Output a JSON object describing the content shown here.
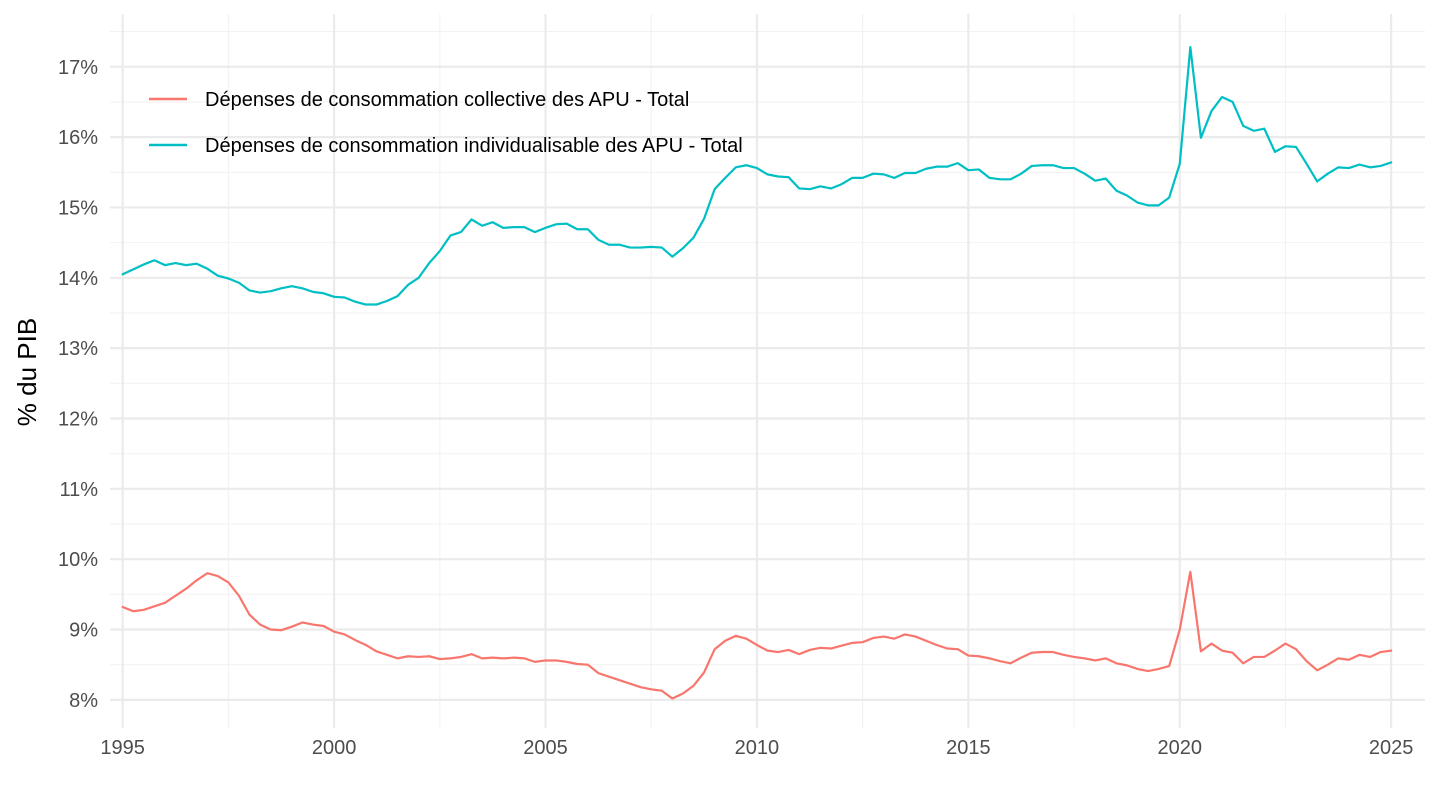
{
  "chart_data": {
    "type": "line",
    "title": "",
    "xlabel": "",
    "ylabel": "% du PIB",
    "xlim": [
      1994.7,
      2025.8
    ],
    "ylim": [
      7.6,
      17.75
    ],
    "x_ticks": [
      1995,
      2000,
      2005,
      2010,
      2015,
      2020,
      2025
    ],
    "x_tick_labels": [
      "1995",
      "2000",
      "2005",
      "2010",
      "2015",
      "2020",
      "2025"
    ],
    "y_ticks": [
      8,
      9,
      10,
      11,
      12,
      13,
      14,
      15,
      16,
      17
    ],
    "y_tick_labels": [
      "8%",
      "9%",
      "10%",
      "11%",
      "12%",
      "13%",
      "14%",
      "15%",
      "16%",
      "17%"
    ],
    "grid": true,
    "legend_position": "top-left",
    "series": [
      {
        "name": "Dépenses de consommation collective des APU - Total",
        "color": "#F8766D",
        "x": [
          1995,
          1995.25,
          1995.5,
          1995.75,
          1996,
          1996.25,
          1996.5,
          1996.75,
          1997,
          1997.25,
          1997.5,
          1997.75,
          1998,
          1998.25,
          1998.5,
          1998.75,
          1999,
          1999.25,
          1999.5,
          1999.75,
          2000,
          2000.25,
          2000.5,
          2000.75,
          2001,
          2001.25,
          2001.5,
          2001.75,
          2002,
          2002.25,
          2002.5,
          2002.75,
          2003,
          2003.25,
          2003.5,
          2003.75,
          2004,
          2004.25,
          2004.5,
          2004.75,
          2005,
          2005.25,
          2005.5,
          2005.75,
          2006,
          2006.25,
          2006.5,
          2006.75,
          2007,
          2007.25,
          2007.5,
          2007.75,
          2008,
          2008.25,
          2008.5,
          2008.75,
          2009,
          2009.25,
          2009.5,
          2009.75,
          2010,
          2010.25,
          2010.5,
          2010.75,
          2011,
          2011.25,
          2011.5,
          2011.75,
          2012,
          2012.25,
          2012.5,
          2012.75,
          2013,
          2013.25,
          2013.5,
          2013.75,
          2014,
          2014.25,
          2014.5,
          2014.75,
          2015,
          2015.25,
          2015.5,
          2015.75,
          2016,
          2016.25,
          2016.5,
          2016.75,
          2017,
          2017.25,
          2017.5,
          2017.75,
          2018,
          2018.25,
          2018.5,
          2018.75,
          2019,
          2019.25,
          2019.5,
          2019.75,
          2020,
          2020.25,
          2020.5,
          2020.75,
          2021,
          2021.25,
          2021.5,
          2021.75,
          2022,
          2022.25,
          2022.5,
          2022.75,
          2023,
          2023.25,
          2023.5,
          2023.75,
          2024,
          2024.25,
          2024.5,
          2024.75,
          2025
        ],
        "y": [
          9.32,
          9.26,
          9.28,
          9.33,
          9.38,
          9.48,
          9.58,
          9.7,
          9.8,
          9.76,
          9.67,
          9.48,
          9.21,
          9.07,
          9.0,
          8.99,
          9.04,
          9.1,
          9.07,
          9.05,
          8.97,
          8.93,
          8.85,
          8.78,
          8.69,
          8.64,
          8.59,
          8.62,
          8.61,
          8.62,
          8.58,
          8.59,
          8.61,
          8.65,
          8.59,
          8.6,
          8.59,
          8.6,
          8.59,
          8.54,
          8.56,
          8.56,
          8.54,
          8.51,
          8.5,
          8.38,
          8.33,
          8.28,
          8.23,
          8.18,
          8.15,
          8.13,
          8.02,
          8.09,
          8.2,
          8.39,
          8.72,
          8.84,
          8.91,
          8.87,
          8.78,
          8.7,
          8.68,
          8.71,
          8.65,
          8.71,
          8.74,
          8.73,
          8.77,
          8.81,
          8.82,
          8.88,
          8.9,
          8.87,
          8.93,
          8.9,
          8.84,
          8.78,
          8.73,
          8.72,
          8.63,
          8.62,
          8.59,
          8.55,
          8.52,
          8.6,
          8.67,
          8.68,
          8.68,
          8.64,
          8.61,
          8.59,
          8.56,
          8.59,
          8.52,
          8.49,
          8.44,
          8.41,
          8.44,
          8.48,
          9.0,
          9.82,
          8.69,
          8.8,
          8.7,
          8.67,
          8.52,
          8.61,
          8.61,
          8.7,
          8.8,
          8.72,
          8.55,
          8.42,
          8.5,
          8.59,
          8.57,
          8.64,
          8.61,
          8.68,
          8.7
        ]
      },
      {
        "name": "Dépenses de consommation individualisable des APU - Total",
        "color": "#00BFC4",
        "x": [
          1995,
          1995.25,
          1995.5,
          1995.75,
          1996,
          1996.25,
          1996.5,
          1996.75,
          1997,
          1997.25,
          1997.5,
          1997.75,
          1998,
          1998.25,
          1998.5,
          1998.75,
          1999,
          1999.25,
          1999.5,
          1999.75,
          2000,
          2000.25,
          2000.5,
          2000.75,
          2001,
          2001.25,
          2001.5,
          2001.75,
          2002,
          2002.25,
          2002.5,
          2002.75,
          2003,
          2003.25,
          2003.5,
          2003.75,
          2004,
          2004.25,
          2004.5,
          2004.75,
          2005,
          2005.25,
          2005.5,
          2005.75,
          2006,
          2006.25,
          2006.5,
          2006.75,
          2007,
          2007.25,
          2007.5,
          2007.75,
          2008,
          2008.25,
          2008.5,
          2008.75,
          2009,
          2009.25,
          2009.5,
          2009.75,
          2010,
          2010.25,
          2010.5,
          2010.75,
          2011,
          2011.25,
          2011.5,
          2011.75,
          2012,
          2012.25,
          2012.5,
          2012.75,
          2013,
          2013.25,
          2013.5,
          2013.75,
          2014,
          2014.25,
          2014.5,
          2014.75,
          2015,
          2015.25,
          2015.5,
          2015.75,
          2016,
          2016.25,
          2016.5,
          2016.75,
          2017,
          2017.25,
          2017.5,
          2017.75,
          2018,
          2018.25,
          2018.5,
          2018.75,
          2019,
          2019.25,
          2019.5,
          2019.75,
          2020,
          2020.25,
          2020.5,
          2020.75,
          2021,
          2021.25,
          2021.5,
          2021.75,
          2022,
          2022.25,
          2022.5,
          2022.75,
          2023,
          2023.25,
          2023.5,
          2023.75,
          2024,
          2024.25,
          2024.5,
          2024.75,
          2025
        ],
        "y": [
          14.05,
          14.12,
          14.19,
          14.25,
          14.18,
          14.21,
          14.18,
          14.2,
          14.13,
          14.03,
          13.99,
          13.93,
          13.82,
          13.79,
          13.81,
          13.85,
          13.88,
          13.85,
          13.8,
          13.78,
          13.73,
          13.72,
          13.66,
          13.62,
          13.62,
          13.67,
          13.74,
          13.9,
          14.0,
          14.21,
          14.38,
          14.6,
          14.65,
          14.83,
          14.74,
          14.79,
          14.71,
          14.72,
          14.72,
          14.65,
          14.71,
          14.76,
          14.77,
          14.69,
          14.69,
          14.54,
          14.47,
          14.47,
          14.43,
          14.43,
          14.44,
          14.43,
          14.3,
          14.42,
          14.57,
          14.84,
          15.26,
          15.42,
          15.57,
          15.6,
          15.56,
          15.47,
          15.44,
          15.43,
          15.27,
          15.26,
          15.3,
          15.27,
          15.33,
          15.42,
          15.42,
          15.48,
          15.47,
          15.42,
          15.49,
          15.49,
          15.55,
          15.58,
          15.58,
          15.63,
          15.53,
          15.54,
          15.42,
          15.4,
          15.4,
          15.48,
          15.59,
          15.6,
          15.6,
          15.56,
          15.56,
          15.48,
          15.38,
          15.41,
          15.24,
          15.17,
          15.07,
          15.03,
          15.03,
          15.14,
          15.62,
          17.28,
          15.99,
          16.37,
          16.57,
          16.5,
          16.16,
          16.09,
          16.12,
          15.79,
          15.87,
          15.86,
          15.62,
          15.37,
          15.48,
          15.57,
          15.56,
          15.61,
          15.57,
          15.59,
          15.64
        ]
      }
    ]
  }
}
